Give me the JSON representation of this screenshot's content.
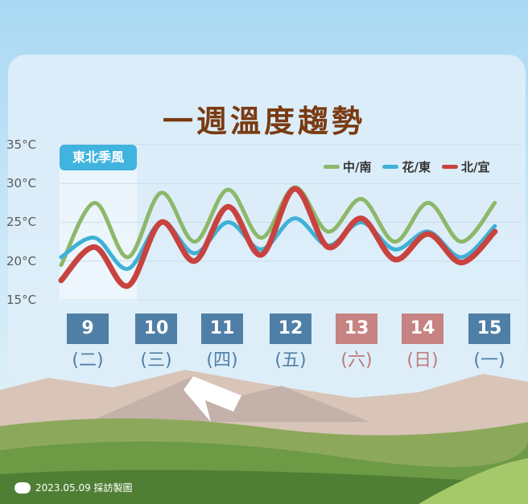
{
  "title": "一週溫度趨勢",
  "badge": "東北季風",
  "footer": "2023.05.09 採訪製圖",
  "days": [
    {
      "date": "9",
      "weekday": "(二)",
      "weekend": false
    },
    {
      "date": "10",
      "weekday": "(三)",
      "weekend": false
    },
    {
      "date": "11",
      "weekday": "(四)",
      "weekend": false
    },
    {
      "date": "12",
      "weekday": "(五)",
      "weekend": false
    },
    {
      "date": "13",
      "weekday": "(六)",
      "weekend": true
    },
    {
      "date": "14",
      "weekday": "(日)",
      "weekend": true
    },
    {
      "date": "15",
      "weekday": "(一)",
      "weekend": false
    }
  ],
  "colors": {
    "weekday_box": "#4f7fa6",
    "weekend_box": "#c78282",
    "weekday_text": "#4f7fa6",
    "weekend_text": "#c07878",
    "title": "#7a3b12"
  },
  "chart_data": {
    "type": "line",
    "title": "一週溫度趨勢",
    "yticks": [
      "35°C",
      "30°C",
      "25°C",
      "20°C",
      "15°C"
    ],
    "ylim": [
      15,
      35
    ],
    "grid": true,
    "legend_position": "top-right",
    "x": [
      0,
      0.5,
      1,
      1.5,
      2,
      2.5,
      3,
      3.5,
      4,
      4.5,
      5,
      5.5,
      6,
      6.5
    ],
    "series": [
      {
        "name": "中/南",
        "color": "#8db86a",
        "values": [
          19.5,
          27.5,
          20.5,
          28.8,
          22.5,
          29.2,
          23.0,
          29.5,
          23.8,
          28.0,
          22.5,
          27.5,
          22.5,
          27.5
        ]
      },
      {
        "name": "花/東",
        "color": "#3fb1d6",
        "values": [
          20.5,
          23.0,
          19.0,
          25.0,
          21.0,
          25.0,
          21.5,
          25.5,
          22.0,
          25.0,
          21.5,
          23.8,
          20.5,
          24.5
        ]
      },
      {
        "name": "北/宜",
        "color": "#c8433f",
        "values": [
          17.5,
          21.8,
          16.8,
          25.0,
          20.0,
          27.0,
          20.8,
          29.3,
          21.8,
          25.5,
          20.2,
          23.5,
          19.8,
          23.8
        ]
      }
    ]
  }
}
